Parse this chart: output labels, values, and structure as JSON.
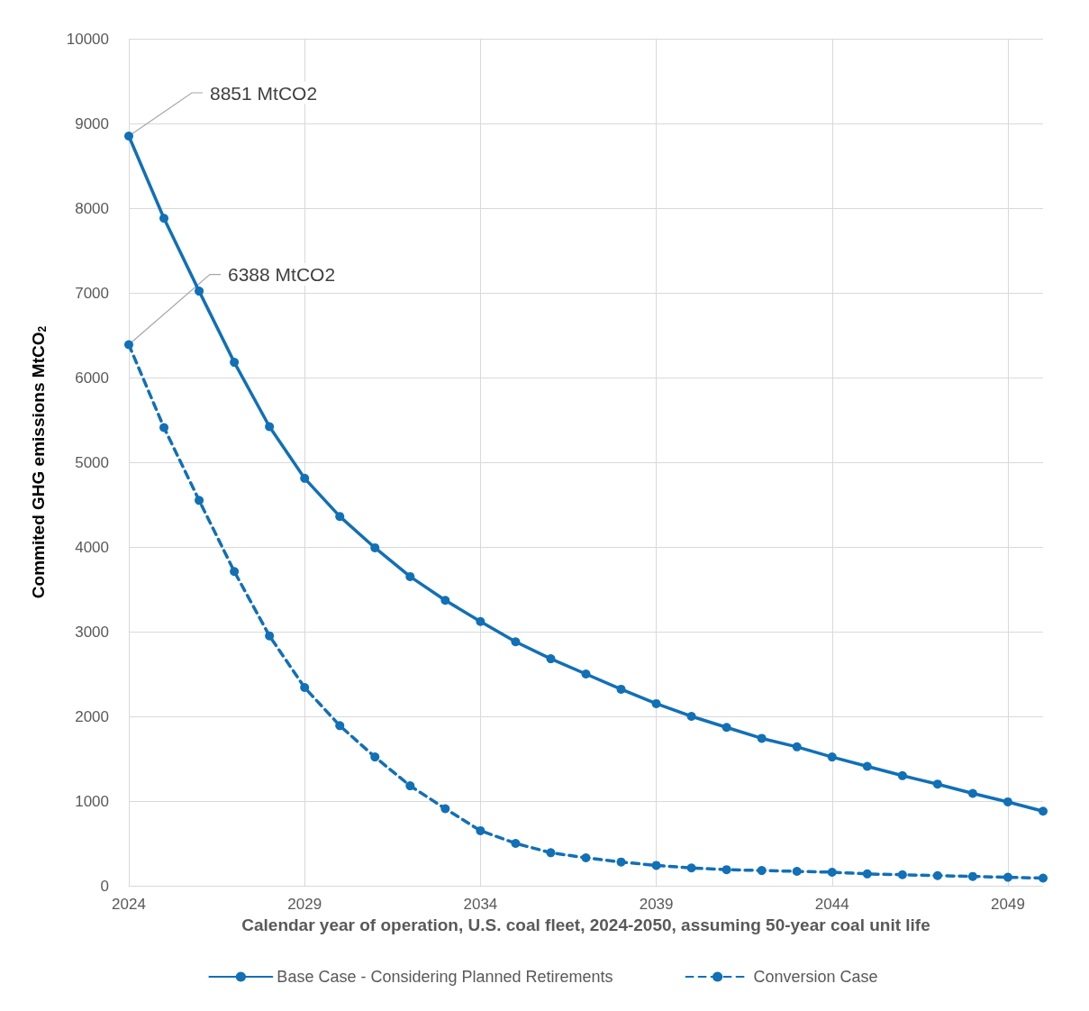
{
  "chart_data": {
    "type": "line",
    "xlabel": "Calendar year of operation, U.S. coal fleet, 2024-2050, assuming 50-year coal unit life",
    "ylabel": "Commited GHG emissions MtCO$_{2}$",
    "x": [
      2024,
      2025,
      2026,
      2027,
      2028,
      2029,
      2030,
      2031,
      2032,
      2033,
      2034,
      2035,
      2036,
      2037,
      2038,
      2039,
      2040,
      2041,
      2042,
      2043,
      2044,
      2045,
      2046,
      2047,
      2048,
      2049,
      2050
    ],
    "series": [
      {
        "name": "Base Case - Considering Planned Retirements",
        "color": "#1170b6",
        "line_style": "solid",
        "values": [
          8851,
          7880,
          7020,
          6180,
          5420,
          4810,
          4360,
          3990,
          3650,
          3370,
          3120,
          2880,
          2680,
          2500,
          2320,
          2150,
          2000,
          1870,
          1740,
          1640,
          1520,
          1410,
          1300,
          1200,
          1090,
          990,
          880
        ]
      },
      {
        "name": "Conversion Case",
        "color": "#1170b6",
        "line_style": "dashed",
        "values": [
          6388,
          5410,
          4550,
          3710,
          2950,
          2340,
          1890,
          1520,
          1180,
          910,
          650,
          500,
          390,
          330,
          280,
          240,
          210,
          190,
          180,
          170,
          160,
          140,
          130,
          120,
          110,
          100,
          90
        ]
      }
    ],
    "annotations": [
      {
        "text": "8851 MtCO2",
        "x": 2024,
        "y": 8851
      },
      {
        "text": "6388 MtCO2",
        "x": 2024,
        "y": 6388
      }
    ],
    "xlim": [
      2024,
      2050
    ],
    "xticks": [
      2024,
      2029,
      2034,
      2039,
      2044,
      2049
    ],
    "ylim": [
      0,
      10000
    ],
    "yticks": [
      0,
      1000,
      2000,
      3000,
      4000,
      5000,
      6000,
      7000,
      8000,
      9000,
      10000
    ],
    "grid": true,
    "legend": "bottom",
    "marker": "circle"
  }
}
